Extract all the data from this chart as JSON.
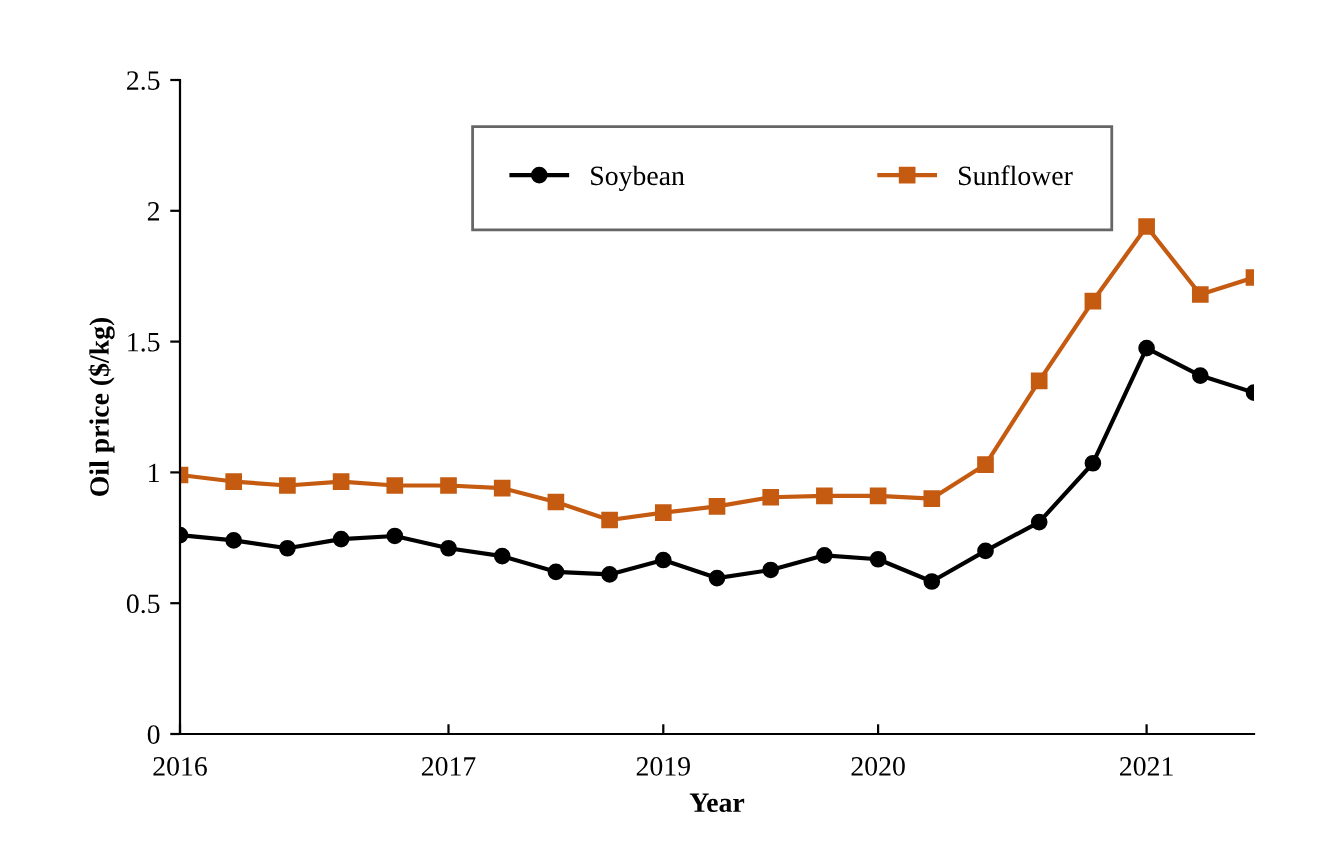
{
  "chart_data": {
    "type": "line",
    "xlabel": "Year",
    "ylabel": "Oil price ($/kg)",
    "categories": [
      "2016",
      null,
      null,
      null,
      null,
      "2017",
      null,
      null,
      null,
      "2019",
      null,
      null,
      null,
      "2020",
      null,
      null,
      null,
      null,
      "2021",
      null,
      null
    ],
    "series": [
      {
        "name": "Soybean",
        "color": "#000000",
        "marker": "circle",
        "values": [
          0.76,
          0.74,
          0.71,
          0.745,
          0.757,
          0.71,
          0.68,
          0.62,
          0.61,
          0.665,
          0.596,
          0.627,
          0.683,
          0.668,
          0.583,
          0.7,
          0.81,
          1.035,
          1.475,
          1.37,
          1.305
        ]
      },
      {
        "name": "Sunflower",
        "color": "#c55a11",
        "marker": "square",
        "values": [
          0.99,
          0.965,
          0.95,
          0.965,
          0.95,
          0.95,
          0.94,
          0.887,
          0.818,
          0.846,
          0.87,
          0.905,
          0.91,
          0.91,
          0.9,
          1.03,
          1.35,
          1.655,
          1.94,
          1.68,
          1.745
        ]
      }
    ],
    "ylim": [
      0,
      2.5
    ],
    "yticks": [
      0,
      0.5,
      1,
      1.5,
      2,
      2.5
    ],
    "grid": false,
    "legend": "top"
  }
}
